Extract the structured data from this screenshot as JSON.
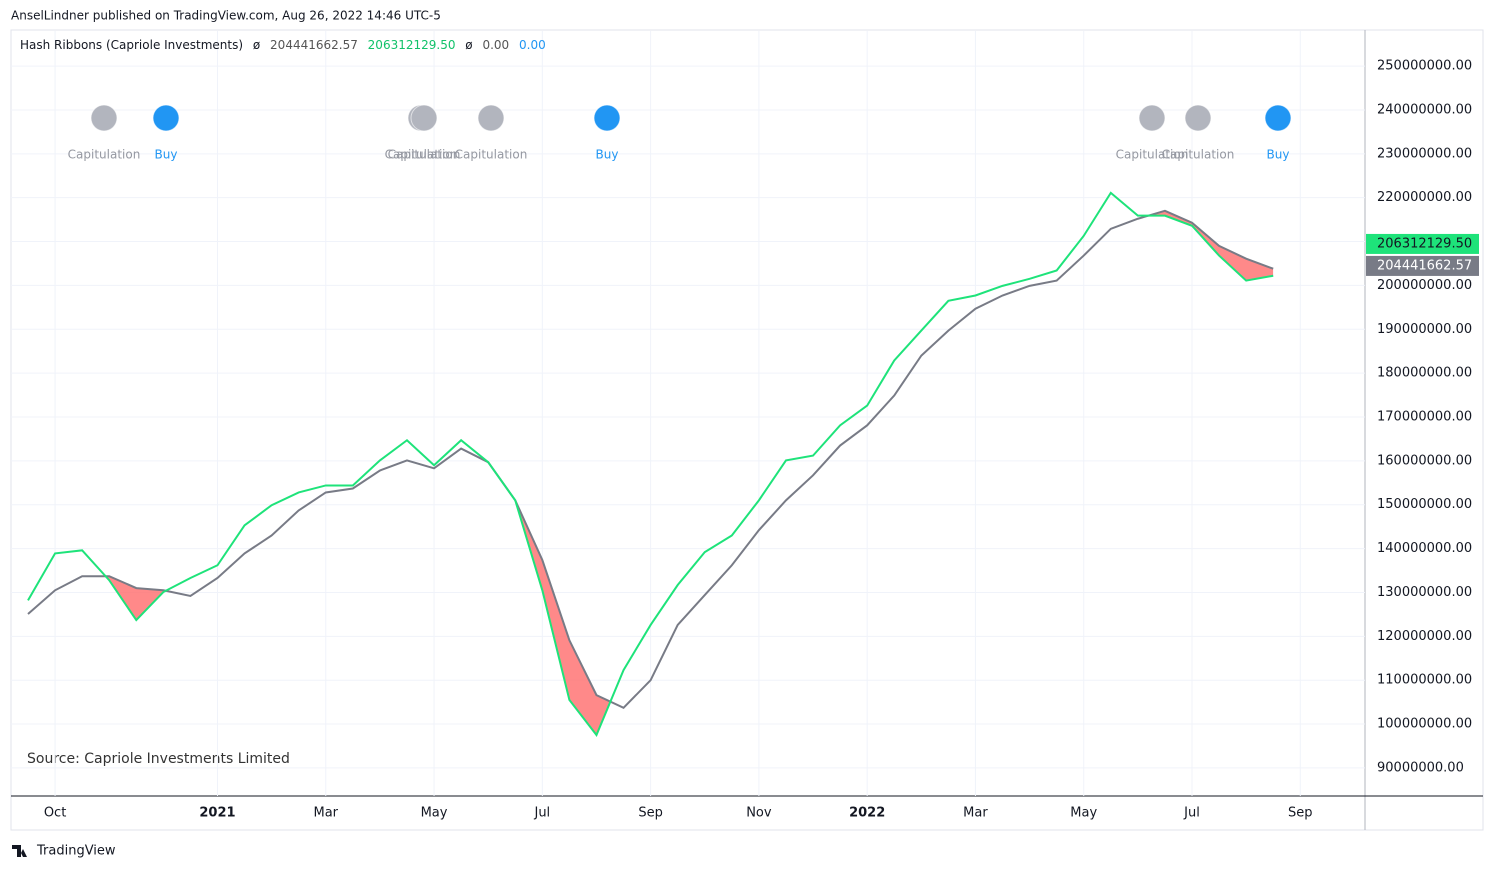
{
  "byline": "AnselLindner published on TradingView.com, Aug 26, 2022 14:46 UTC-5",
  "source": "Source: Capriole Investments Limited",
  "footer": "TradingView",
  "chart_data": {
    "type": "line",
    "title": "Hash Ribbons (Capriole Investments)",
    "legend_symbols": [
      "ø",
      "ø"
    ],
    "legend_zeros": [
      "0.00",
      "0.00"
    ],
    "last_values": [
      {
        "value": 206312129.5,
        "label": "206312129.50"
      },
      {
        "value": 204441662.57,
        "label": "204441662.57"
      }
    ],
    "signals": [
      "Capitulation",
      "Buy",
      "Capitulation",
      "Capitulation",
      "Capitulation",
      "Buy",
      "Capitulation",
      "Capitulation",
      "Buy"
    ],
    "signal_colors": {
      "Capitulation": "#b2b5be",
      "Buy": "#2196f3"
    },
    "categories": [
      null,
      "Oct",
      null,
      null,
      null,
      null,
      null,
      "2021",
      null,
      null,
      null,
      "Mar",
      null,
      null,
      null,
      "May",
      null,
      null,
      null,
      "Jul",
      null,
      null,
      null,
      "Sep",
      null,
      null,
      null,
      "Nov",
      null,
      null,
      null,
      "2022",
      null,
      null,
      null,
      "Mar",
      null,
      null,
      null,
      "May",
      null,
      null,
      null,
      "Jul",
      null,
      null,
      null,
      "Sep"
    ],
    "series": [
      {
        "color": "#1ee37a",
        "values": [
          128200000,
          138900000,
          139600000,
          132800000,
          123700000,
          130100000,
          133300000,
          136200000,
          145300000,
          149900000,
          152800000,
          154400000,
          154400000,
          160100000,
          164700000,
          159000000,
          164700000,
          159700000,
          151000000,
          130500000,
          105500000,
          97500000,
          112300000,
          122600000,
          131700000,
          139200000,
          143000000,
          151000000,
          160100000,
          161200000,
          168100000,
          172600000,
          182900000,
          189700000,
          196500000,
          197700000,
          199900000,
          201500000,
          203400000,
          211300000,
          221100000,
          215900000,
          215900000,
          213600000,
          206800000,
          201100000,
          202200000,
          null
        ]
      },
      {
        "color": "#787b86",
        "values": [
          125100000,
          130500000,
          133700000,
          133700000,
          131000000,
          130500000,
          129200000,
          133300000,
          138900000,
          143000000,
          148700000,
          152800000,
          153700000,
          157800000,
          160100000,
          158300000,
          162800000,
          159700000,
          151000000,
          137400000,
          119100000,
          106600000,
          103700000,
          110000000,
          122600000,
          129400000,
          136200000,
          144200000,
          151000000,
          156700000,
          163500000,
          168100000,
          174900000,
          184000000,
          189700000,
          194700000,
          197700000,
          199900000,
          201100000,
          206800000,
          212900000,
          215200000,
          217000000,
          214300000,
          209000000,
          206100000,
          203800000,
          null
        ]
      }
    ],
    "fill_color": "#ff6b6b",
    "ylim": [
      83600000,
      258000000
    ],
    "yticks": [
      {
        "value": 90000000,
        "label": "90000000.00"
      },
      {
        "value": 100000000,
        "label": "100000000.00"
      },
      {
        "value": 110000000,
        "label": "110000000.00"
      },
      {
        "value": 120000000,
        "label": "120000000.00"
      },
      {
        "value": 130000000,
        "label": "130000000.00"
      },
      {
        "value": 140000000,
        "label": "140000000.00"
      },
      {
        "value": 150000000,
        "label": "150000000.00"
      },
      {
        "value": 160000000,
        "label": "160000000.00"
      },
      {
        "value": 170000000,
        "label": "170000000.00"
      },
      {
        "value": 180000000,
        "label": "180000000.00"
      },
      {
        "value": 190000000,
        "label": "190000000.00"
      },
      {
        "value": 200000000,
        "label": "200000000.00"
      },
      {
        "value": 210000000,
        "label": "210000000.00"
      },
      {
        "value": 220000000,
        "label": "220000000.00"
      },
      {
        "value": 230000000,
        "label": "230000000.00"
      },
      {
        "value": 240000000,
        "label": "240000000.00"
      },
      {
        "value": 250000000,
        "label": "250000000.00"
      }
    ],
    "grid": true
  }
}
